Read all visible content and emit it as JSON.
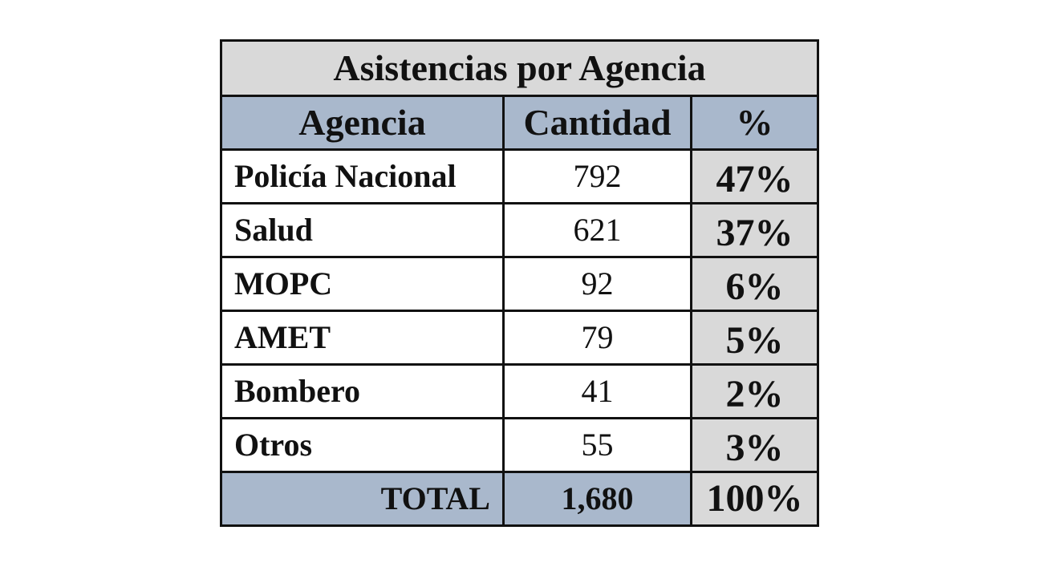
{
  "table": {
    "title": "Asistencias por Agencia",
    "headers": {
      "agency": "Agencia",
      "quantity": "Cantidad",
      "percent": "%"
    },
    "rows": [
      {
        "agency": "Policía Nacional",
        "quantity": "792",
        "percent": "47%"
      },
      {
        "agency": "Salud",
        "quantity": "621",
        "percent": "37%"
      },
      {
        "agency": "MOPC",
        "quantity": "92",
        "percent": "6%"
      },
      {
        "agency": "AMET",
        "quantity": "79",
        "percent": "5%"
      },
      {
        "agency": "Bombero",
        "quantity": "41",
        "percent": "2%"
      },
      {
        "agency": "Otros",
        "quantity": "55",
        "percent": "3%"
      }
    ],
    "total": {
      "label": "TOTAL",
      "quantity": "1,680",
      "percent": "100%"
    }
  },
  "colors": {
    "header_fill": "#a9b8cc",
    "percent_fill": "#d9d9d9",
    "title_fill": "#d9d9d9",
    "border": "#111111"
  }
}
